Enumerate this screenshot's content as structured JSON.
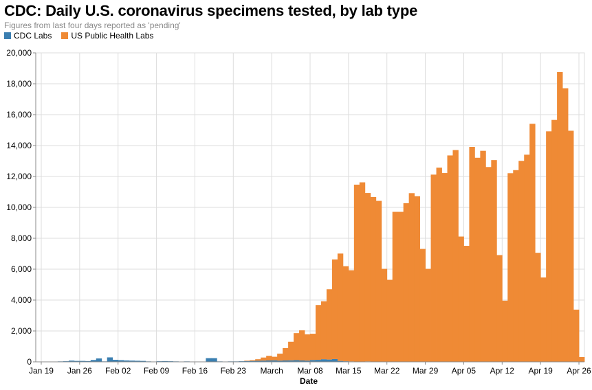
{
  "chart_data": {
    "type": "bar",
    "stacked": true,
    "title": "CDC: Daily U.S. coronavirus specimens tested, by lab type",
    "subtitle": "Figures from last four days reported as 'pending'",
    "xlabel": "Date",
    "ylabel": "",
    "ylim": [
      0,
      20000
    ],
    "grid": true,
    "legend": "top-left",
    "y_ticks": [
      "0",
      "2,000",
      "4,000",
      "6,000",
      "8,000",
      "10,000",
      "12,000",
      "14,000",
      "16,000",
      "18,000",
      "20,000"
    ],
    "x_ticks": [
      "Jan 19",
      "Jan 26",
      "Feb 02",
      "Feb 09",
      "Feb 16",
      "Feb 23",
      "March",
      "Mar 08",
      "Mar 15",
      "Mar 22",
      "Mar 29",
      "Apr 05",
      "Apr 12",
      "Apr 19",
      "Apr 26"
    ],
    "x_range": [
      "2020-01-18",
      "2020-04-27"
    ],
    "dates": [
      "2020-01-18",
      "2020-01-19",
      "2020-01-20",
      "2020-01-21",
      "2020-01-22",
      "2020-01-23",
      "2020-01-24",
      "2020-01-25",
      "2020-01-26",
      "2020-01-27",
      "2020-01-28",
      "2020-01-29",
      "2020-01-30",
      "2020-01-31",
      "2020-02-01",
      "2020-02-02",
      "2020-02-03",
      "2020-02-04",
      "2020-02-05",
      "2020-02-06",
      "2020-02-07",
      "2020-02-08",
      "2020-02-09",
      "2020-02-10",
      "2020-02-11",
      "2020-02-12",
      "2020-02-13",
      "2020-02-14",
      "2020-02-15",
      "2020-02-16",
      "2020-02-17",
      "2020-02-18",
      "2020-02-19",
      "2020-02-20",
      "2020-02-21",
      "2020-02-22",
      "2020-02-23",
      "2020-02-24",
      "2020-02-25",
      "2020-02-26",
      "2020-02-27",
      "2020-02-28",
      "2020-02-29",
      "2020-03-01",
      "2020-03-02",
      "2020-03-03",
      "2020-03-04",
      "2020-03-05",
      "2020-03-06",
      "2020-03-07",
      "2020-03-08",
      "2020-03-09",
      "2020-03-10",
      "2020-03-11",
      "2020-03-12",
      "2020-03-13",
      "2020-03-14",
      "2020-03-15",
      "2020-03-16",
      "2020-03-17",
      "2020-03-18",
      "2020-03-19",
      "2020-03-20",
      "2020-03-21",
      "2020-03-22",
      "2020-03-23",
      "2020-03-24",
      "2020-03-25",
      "2020-03-26",
      "2020-03-27",
      "2020-03-28",
      "2020-03-29",
      "2020-03-30",
      "2020-03-31",
      "2020-04-01",
      "2020-04-02",
      "2020-04-03",
      "2020-04-04",
      "2020-04-05",
      "2020-04-06",
      "2020-04-07",
      "2020-04-08",
      "2020-04-09",
      "2020-04-10",
      "2020-04-11",
      "2020-04-12",
      "2020-04-13",
      "2020-04-14",
      "2020-04-15",
      "2020-04-16",
      "2020-04-17",
      "2020-04-18",
      "2020-04-19",
      "2020-04-20",
      "2020-04-21",
      "2020-04-22",
      "2020-04-23",
      "2020-04-24",
      "2020-04-25",
      "2020-04-26"
    ],
    "series": [
      {
        "name": "CDC Labs",
        "color": "#3b7fb1",
        "values": [
          4,
          0,
          0,
          0,
          30,
          40,
          80,
          60,
          60,
          50,
          120,
          220,
          30,
          290,
          130,
          110,
          90,
          80,
          70,
          60,
          30,
          20,
          40,
          50,
          40,
          30,
          20,
          30,
          20,
          20,
          20,
          240,
          240,
          30,
          20,
          30,
          30,
          40,
          50,
          60,
          70,
          80,
          90,
          100,
          80,
          90,
          100,
          110,
          90,
          80,
          120,
          130,
          170,
          150,
          180,
          60,
          40,
          30,
          20,
          20,
          30,
          20,
          20,
          20,
          10,
          10,
          10,
          20,
          20,
          20,
          10,
          20,
          20,
          20,
          20,
          10,
          10,
          10,
          10,
          10,
          10,
          10,
          10,
          10,
          10,
          10,
          10,
          10,
          10,
          10,
          10,
          10,
          10,
          20,
          10,
          10,
          10,
          10,
          10,
          10
        ]
      },
      {
        "name": "US Public Health Labs",
        "color": "#ef8a35",
        "values": [
          0,
          0,
          0,
          0,
          0,
          0,
          0,
          0,
          0,
          0,
          0,
          0,
          0,
          0,
          0,
          0,
          0,
          0,
          0,
          0,
          0,
          0,
          0,
          0,
          0,
          0,
          0,
          0,
          0,
          0,
          0,
          0,
          0,
          0,
          0,
          0,
          0,
          0,
          30,
          50,
          100,
          200,
          300,
          230,
          450,
          800,
          1200,
          1750,
          1950,
          1700,
          1700,
          3550,
          3750,
          4550,
          6450,
          6950,
          6150,
          5900,
          11450,
          11600,
          10900,
          10650,
          10400,
          6000,
          5300,
          9700,
          9700,
          10250,
          10900,
          10700,
          7300,
          6000,
          12100,
          12550,
          12200,
          13350,
          13700,
          8100,
          7500,
          13900,
          13200,
          13650,
          12600,
          13050,
          6900,
          3950,
          12200,
          12400,
          13000,
          13400,
          15400,
          7050,
          5450,
          14900,
          15650,
          18750,
          17700,
          14950,
          3370,
          300
        ]
      }
    ]
  }
}
